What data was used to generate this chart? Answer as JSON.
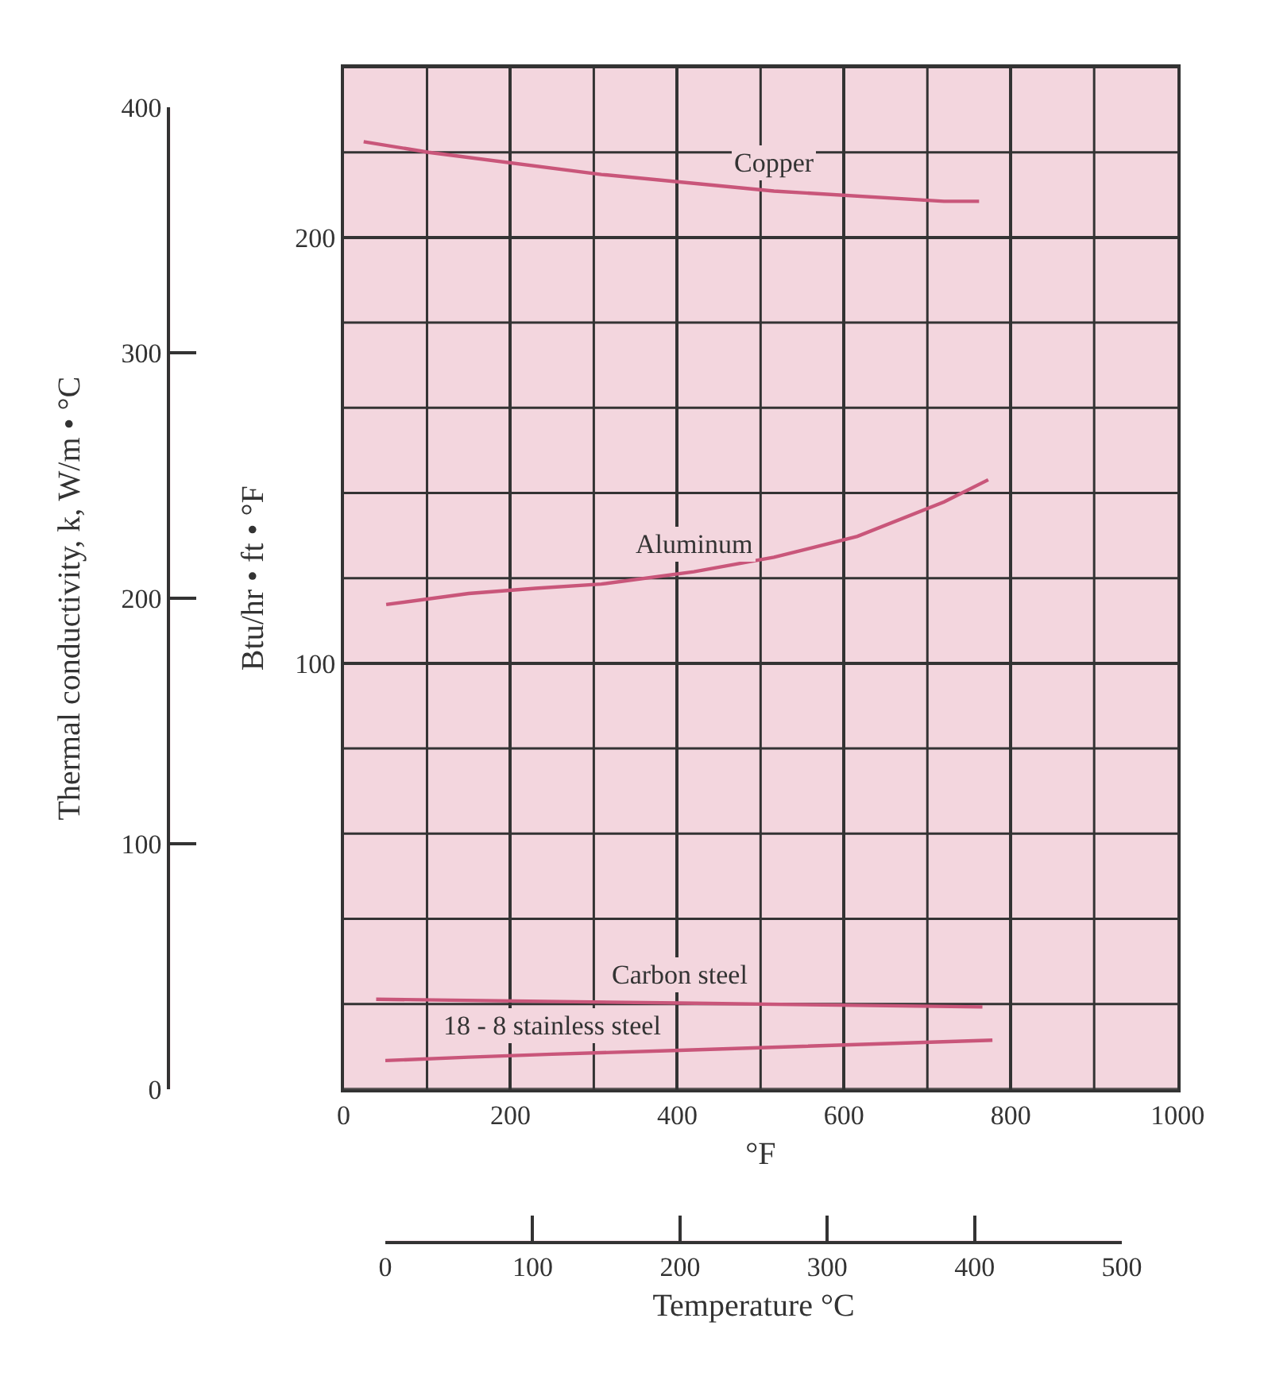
{
  "chart_data": {
    "type": "line",
    "xlabel": "°F",
    "ylabel": "Btu/hr • ft • °F",
    "y2label": "Thermal conductivity, k, W/m • °C",
    "x2label": "Temperature °C",
    "xlim": [
      0,
      1000
    ],
    "xticks": [
      0,
      {
        "value": 100,
        "label": null
      },
      200,
      {
        "value": 300,
        "label": null
      },
      400,
      {
        "value": 500,
        "label": null
      },
      600,
      {
        "value": 700,
        "label": null
      },
      800,
      {
        "value": 900,
        "label": null
      },
      1000
    ],
    "ylim": [
      0,
      240
    ],
    "yticks": [
      {
        "value": 0,
        "label": null
      },
      {
        "value": 20,
        "label": null
      },
      {
        "value": 40,
        "label": null
      },
      {
        "value": 60,
        "label": null
      },
      {
        "value": 80,
        "label": null
      },
      100,
      {
        "value": 120,
        "label": null
      },
      {
        "value": 140,
        "label": null
      },
      {
        "value": 160,
        "label": null
      },
      {
        "value": 180,
        "label": null
      },
      200,
      {
        "value": 220,
        "label": null
      },
      {
        "value": 240,
        "label": null
      }
    ],
    "y2lim": [
      0,
      400
    ],
    "y2ticks": [
      0,
      100,
      200,
      300,
      400
    ],
    "x2lim": [
      0,
      500
    ],
    "x2ticks": [
      0,
      100,
      200,
      300,
      400,
      500
    ],
    "grid": true,
    "legend": false,
    "marker": "none",
    "line_style": "solid",
    "series": [
      {
        "name": "Copper",
        "color": "#c9567a",
        "x": [
          24,
          102,
          309,
          516,
          720,
          762
        ],
        "values": [
          222.5,
          220,
          214.8,
          210.9,
          208.5,
          208.5
        ]
      },
      {
        "name": "Aluminum",
        "color": "#c9567a",
        "x": [
          51,
          150,
          230,
          309,
          420,
          516,
          616,
          720,
          773
        ],
        "values": [
          113.8,
          116.4,
          117.6,
          118.6,
          121.5,
          124.9,
          129.8,
          137.9,
          143.1
        ]
      },
      {
        "name": "Carbon steel",
        "color": "#c9567a",
        "x": [
          39,
          403,
          766
        ],
        "values": [
          21.1,
          20.2,
          19.3
        ]
      },
      {
        "name": "18 - 8 stainless steel",
        "color": "#c9567a",
        "x": [
          50,
          150,
          250,
          403,
          778
        ],
        "values": [
          6.7,
          7.5,
          8.2,
          9.1,
          11.5
        ]
      }
    ]
  }
}
